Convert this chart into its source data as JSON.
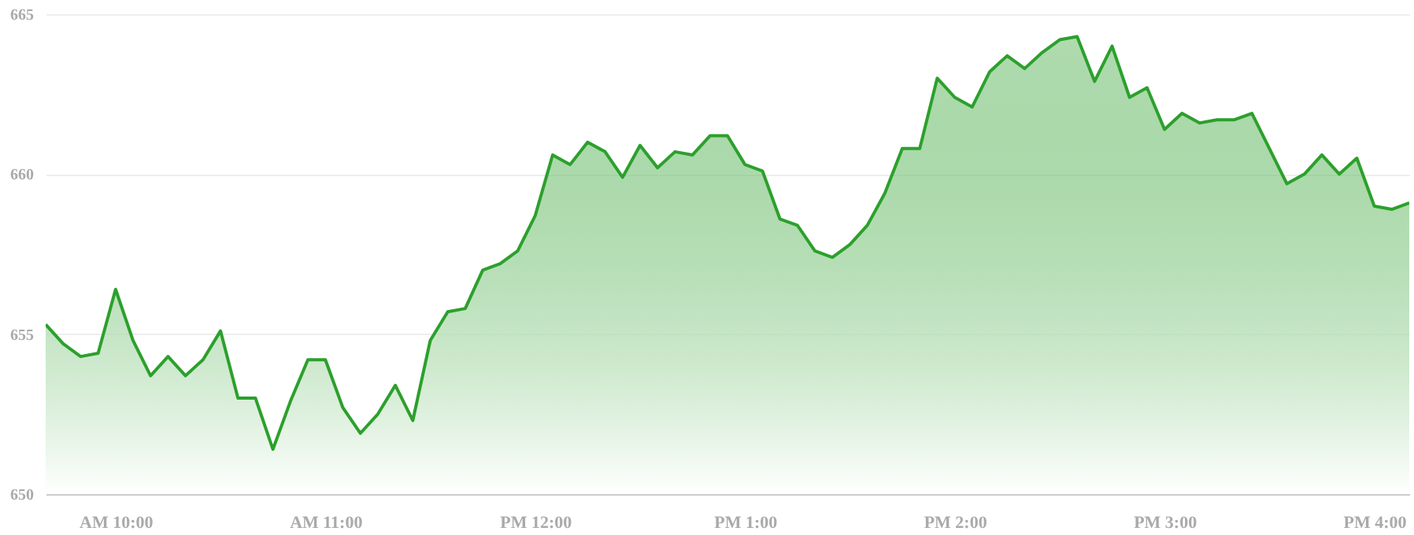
{
  "chart_data": {
    "type": "area",
    "categories": [
      null,
      null,
      null,
      null,
      "AM 10:00",
      null,
      null,
      null,
      null,
      null,
      null,
      null,
      null,
      null,
      null,
      null,
      "AM 11:00",
      null,
      null,
      null,
      null,
      null,
      null,
      null,
      null,
      null,
      null,
      null,
      "PM 12:00",
      null,
      null,
      null,
      null,
      null,
      null,
      null,
      null,
      null,
      null,
      null,
      "PM 1:00",
      null,
      null,
      null,
      null,
      null,
      null,
      null,
      null,
      null,
      null,
      null,
      "PM 2:00",
      null,
      null,
      null,
      null,
      null,
      null,
      null,
      null,
      null,
      null,
      null,
      "PM 3:00",
      null,
      null,
      null,
      null,
      null,
      null,
      null,
      null,
      null,
      null,
      null,
      "PM 4:00",
      null,
      null
    ],
    "series": [
      {
        "color": "#2ca02c",
        "values": [
          655.3,
          654.7,
          654.3,
          654.4,
          656.4,
          654.8,
          653.7,
          654.3,
          653.7,
          654.2,
          655.1,
          653.0,
          653.0,
          651.4,
          652.9,
          654.2,
          654.2,
          652.7,
          651.9,
          652.5,
          653.4,
          652.3,
          654.8,
          655.7,
          655.8,
          657.0,
          657.2,
          657.6,
          658.7,
          660.6,
          660.3,
          661.0,
          660.7,
          659.9,
          660.9,
          660.2,
          660.7,
          660.6,
          661.2,
          661.2,
          660.3,
          660.1,
          658.6,
          658.4,
          657.6,
          657.4,
          657.8,
          658.4,
          659.4,
          660.8,
          660.8,
          663.0,
          662.4,
          662.1,
          663.2,
          663.7,
          663.3,
          663.8,
          664.2,
          664.3,
          662.9,
          664.0,
          662.4,
          662.7,
          661.4,
          661.9,
          661.6,
          661.7,
          661.7,
          661.9,
          660.8,
          659.7,
          660.0,
          660.6,
          660.0,
          660.5,
          659.0,
          658.9,
          659.1
        ]
      }
    ],
    "ylim": [
      650,
      665
    ],
    "yticks": [
      650,
      655,
      660,
      665
    ],
    "grid": "y"
  }
}
